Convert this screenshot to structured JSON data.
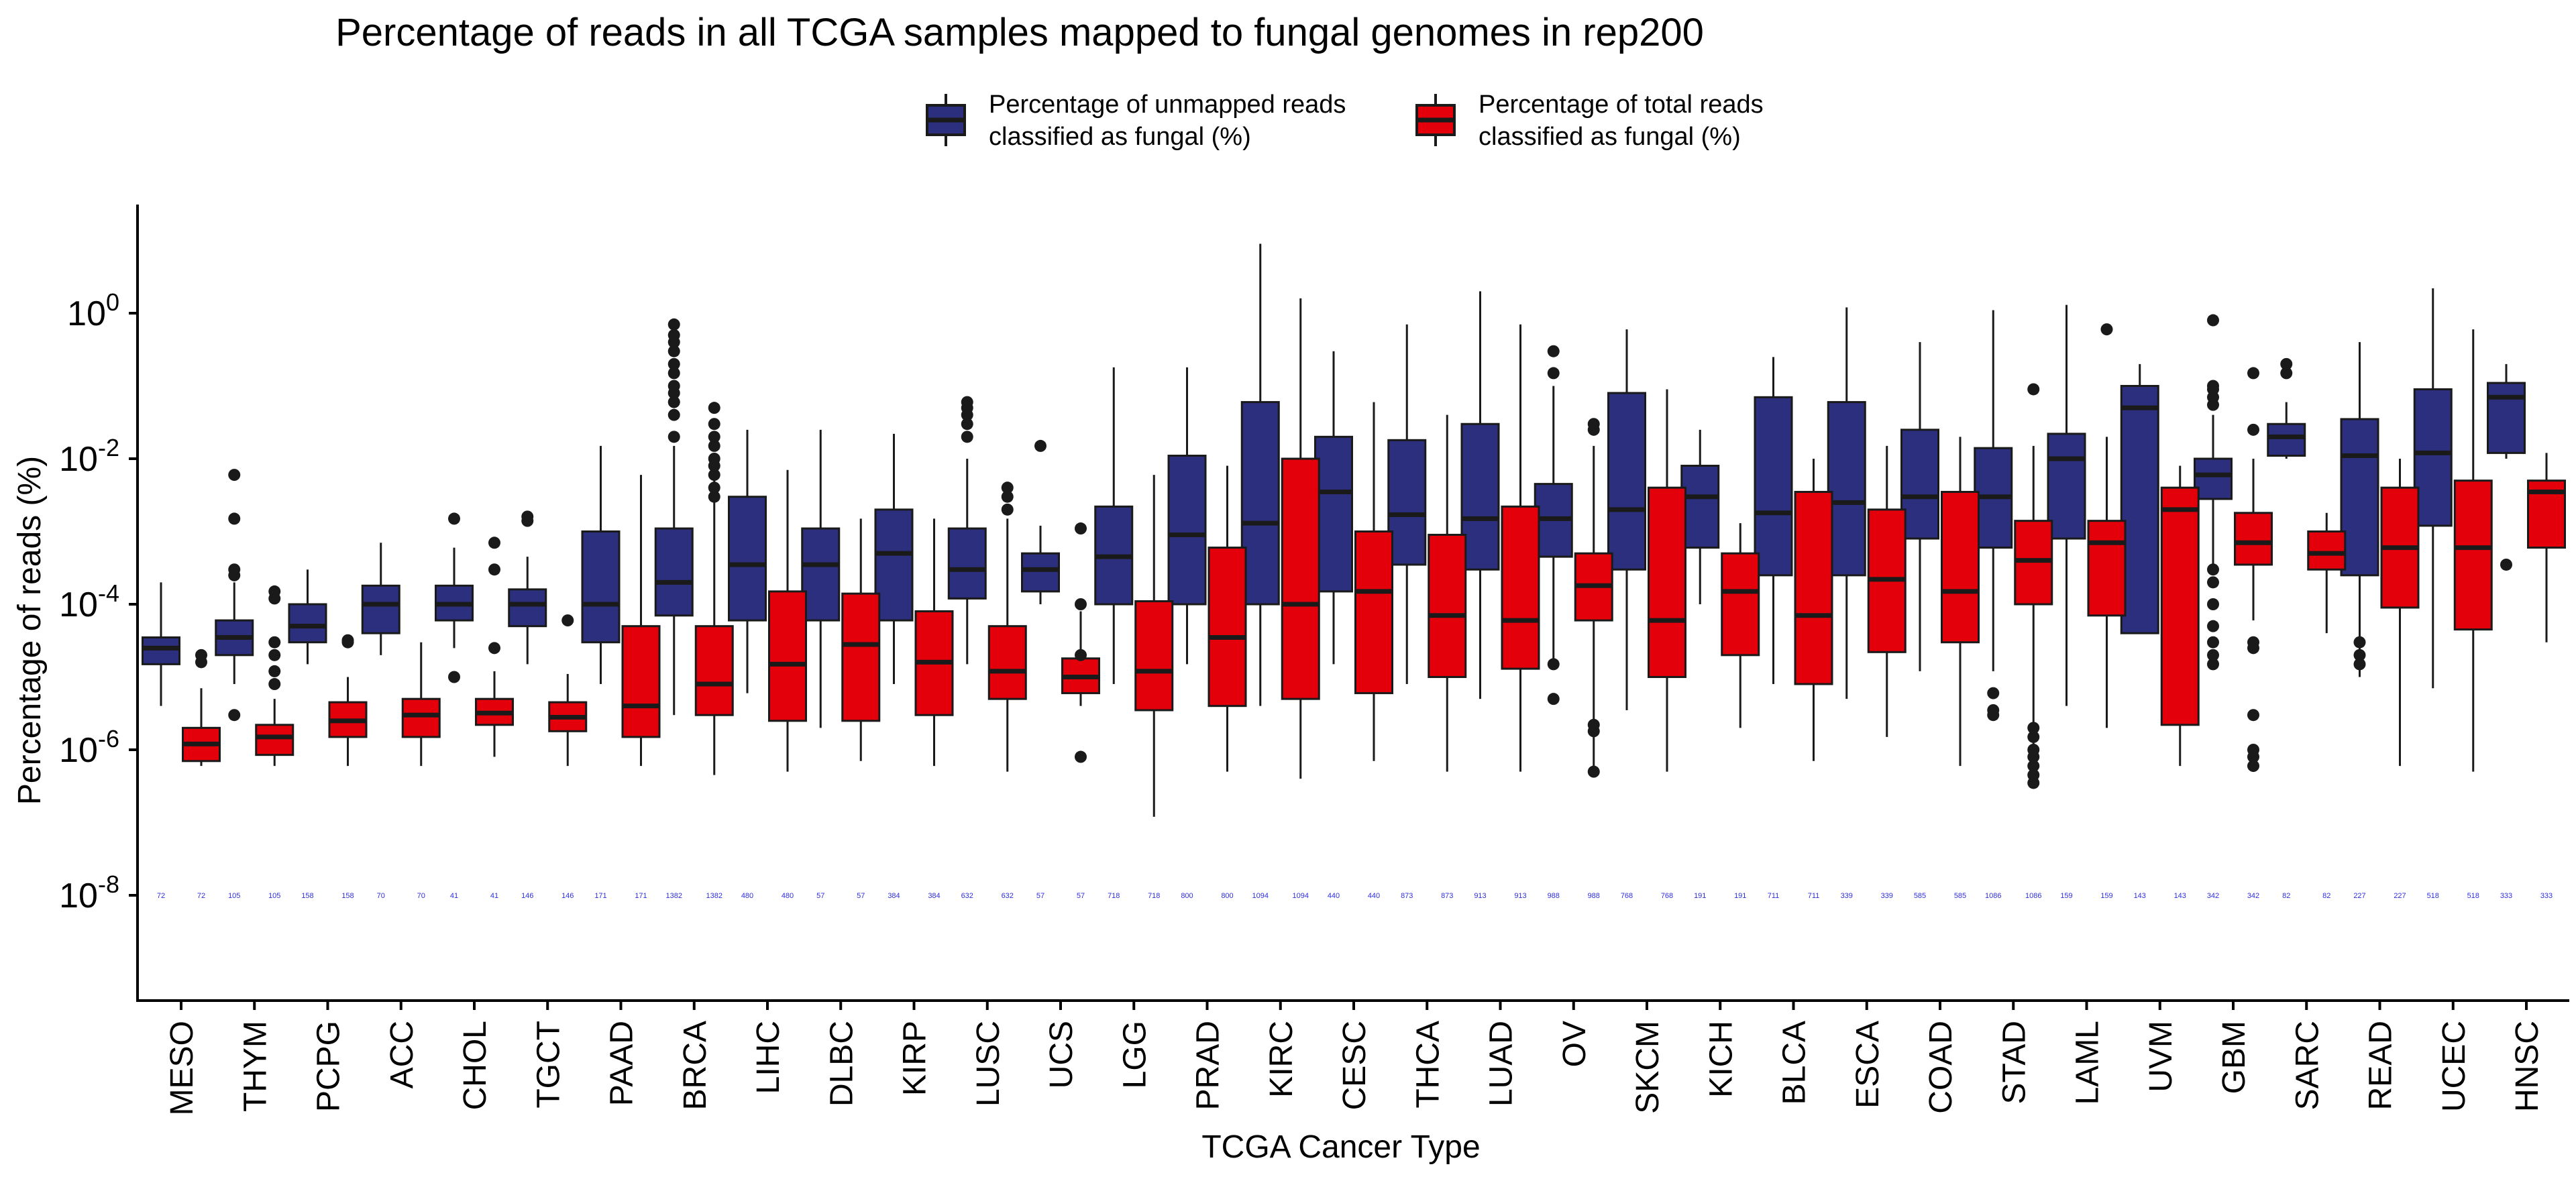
{
  "chart_data": {
    "type": "box",
    "title": "Percentage of reads in all TCGA samples mapped to fungal genomes in rep200",
    "xlabel": "TCGA Cancer Type",
    "ylabel": "Percentage of reads (%)",
    "y_scale": "log10",
    "ylim": [
      1e-10,
      200
    ],
    "yticks": [
      {
        "exp": "0",
        "value": 1
      },
      {
        "exp": "-2",
        "value": 0.01
      },
      {
        "exp": "-4",
        "value": 0.0001
      },
      {
        "exp": "-6",
        "value": 1e-06
      },
      {
        "exp": "-8",
        "value": 1e-08
      }
    ],
    "ytick_base": "10",
    "count_label_y": 1e-08,
    "legend": {
      "position": "top",
      "entries": [
        {
          "key": "unmapped",
          "line1": "Percentage of unmapped reads",
          "line2": "classified as fungal (%)"
        },
        {
          "key": "total",
          "line1": "Percentage of total reads",
          "line2": "classified as fungal (%)"
        }
      ]
    },
    "colors": {
      "unmapped": "#2b2f7d",
      "total": "#e3000b",
      "outline": "#1a1a1a",
      "count_text": "#2e2ee0"
    },
    "categories": [
      "MESO",
      "THYM",
      "PCPG",
      "ACC",
      "CHOL",
      "TGCT",
      "PAAD",
      "BRCA",
      "LIHC",
      "DLBC",
      "KIRP",
      "LUSC",
      "UCS",
      "LGG",
      "PRAD",
      "KIRC",
      "CESC",
      "THCA",
      "LUAD",
      "OV",
      "SKCM",
      "KICH",
      "BLCA",
      "ESCA",
      "COAD",
      "STAD",
      "LAML",
      "UVM",
      "GBM",
      "SARC",
      "READ",
      "UCEC",
      "HNSC"
    ],
    "series": [
      {
        "key": "unmapped",
        "name": "Percentage of unmapped reads classified as fungal (%)",
        "boxes": [
          {
            "n": "72",
            "lo": 4e-06,
            "q1": 1.5e-05,
            "med": 2.5e-05,
            "q3": 3.5e-05,
            "hi": 0.0002,
            "out": []
          },
          {
            "n": "105",
            "lo": 8e-06,
            "q1": 2e-05,
            "med": 3.5e-05,
            "q3": 6e-05,
            "hi": 0.0002,
            "out": [
              3e-06,
              0.00025,
              0.0003,
              0.0015,
              0.006
            ]
          },
          {
            "n": "158",
            "lo": 1.5e-05,
            "q1": 3e-05,
            "med": 5e-05,
            "q3": 0.0001,
            "hi": 0.0003,
            "out": []
          },
          {
            "n": "70",
            "lo": 2e-05,
            "q1": 4e-05,
            "med": 0.0001,
            "q3": 0.00018,
            "hi": 0.0007,
            "out": []
          },
          {
            "n": "41",
            "lo": 2.5e-05,
            "q1": 6e-05,
            "med": 0.0001,
            "q3": 0.00018,
            "hi": 0.0006,
            "out": [
              1e-05,
              0.0015
            ]
          },
          {
            "n": "146",
            "lo": 1.5e-05,
            "q1": 5e-05,
            "med": 0.0001,
            "q3": 0.00016,
            "hi": 0.00045,
            "out": [
              0.0014,
              0.0016
            ]
          },
          {
            "n": "171",
            "lo": 8e-06,
            "q1": 3e-05,
            "med": 0.0001,
            "q3": 0.001,
            "hi": 0.015,
            "out": []
          },
          {
            "n": "1382",
            "lo": 3e-06,
            "q1": 7e-05,
            "med": 0.0002,
            "q3": 0.0011,
            "hi": 0.015,
            "out": [
              0.02,
              0.04,
              0.06,
              0.08,
              0.1,
              0.15,
              0.2,
              0.3,
              0.4,
              0.5,
              0.7
            ]
          },
          {
            "n": "480",
            "lo": 6e-06,
            "q1": 6e-05,
            "med": 0.00035,
            "q3": 0.003,
            "hi": 0.025,
            "out": []
          },
          {
            "n": "57",
            "lo": 2e-06,
            "q1": 6e-05,
            "med": 0.00035,
            "q3": 0.0011,
            "hi": 0.025,
            "out": []
          },
          {
            "n": "384",
            "lo": 8e-06,
            "q1": 6e-05,
            "med": 0.0005,
            "q3": 0.002,
            "hi": 0.022,
            "out": []
          },
          {
            "n": "632",
            "lo": 1.5e-05,
            "q1": 0.00012,
            "med": 0.0003,
            "q3": 0.0011,
            "hi": 0.01,
            "out": [
              0.02,
              0.03,
              0.04,
              0.05,
              0.06
            ]
          },
          {
            "n": "57",
            "lo": 0.0001,
            "q1": 0.00015,
            "med": 0.0003,
            "q3": 0.0005,
            "hi": 0.0012,
            "out": [
              0.015
            ]
          },
          {
            "n": "718",
            "lo": 8e-06,
            "q1": 0.0001,
            "med": 0.00045,
            "q3": 0.0022,
            "hi": 0.18,
            "out": []
          },
          {
            "n": "800",
            "lo": 1.5e-05,
            "q1": 0.0001,
            "med": 0.0009,
            "q3": 0.011,
            "hi": 0.18,
            "out": []
          },
          {
            "n": "1094",
            "lo": 4e-06,
            "q1": 0.0001,
            "med": 0.0013,
            "q3": 0.06,
            "hi": 9,
            "out": []
          },
          {
            "n": "440",
            "lo": 1.5e-05,
            "q1": 0.00015,
            "med": 0.0035,
            "q3": 0.02,
            "hi": 0.3,
            "out": []
          },
          {
            "n": "873",
            "lo": 8e-06,
            "q1": 0.00035,
            "med": 0.0017,
            "q3": 0.018,
            "hi": 0.7,
            "out": []
          },
          {
            "n": "913",
            "lo": 5e-06,
            "q1": 0.0003,
            "med": 0.0015,
            "q3": 0.03,
            "hi": 2,
            "out": []
          },
          {
            "n": "988",
            "lo": 1.5e-05,
            "q1": 0.00045,
            "med": 0.0015,
            "q3": 0.0045,
            "hi": 0.1,
            "out": [
              5e-06,
              1.5e-05,
              0.15,
              0.3
            ]
          },
          {
            "n": "768",
            "lo": 3.5e-06,
            "q1": 0.0003,
            "med": 0.002,
            "q3": 0.08,
            "hi": 0.6,
            "out": []
          },
          {
            "n": "191",
            "lo": 0.0001,
            "q1": 0.0006,
            "med": 0.003,
            "q3": 0.008,
            "hi": 0.025,
            "out": []
          },
          {
            "n": "711",
            "lo": 8e-06,
            "q1": 0.00025,
            "med": 0.0018,
            "q3": 0.07,
            "hi": 0.25,
            "out": []
          },
          {
            "n": "339",
            "lo": 5e-06,
            "q1": 0.00025,
            "med": 0.0025,
            "q3": 0.06,
            "hi": 1.2,
            "out": []
          },
          {
            "n": "585",
            "lo": 1.2e-05,
            "q1": 0.0008,
            "med": 0.003,
            "q3": 0.025,
            "hi": 0.4,
            "out": []
          },
          {
            "n": "1086",
            "lo": 1.2e-05,
            "q1": 0.0006,
            "med": 0.003,
            "q3": 0.014,
            "hi": 1.1,
            "out": [
              3e-06,
              3.5e-06,
              6e-06
            ]
          },
          {
            "n": "159",
            "lo": 4e-06,
            "q1": 0.0008,
            "med": 0.01,
            "q3": 0.022,
            "hi": 1.3,
            "out": []
          },
          {
            "n": "143",
            "lo": 4e-05,
            "q1": 4e-05,
            "med": 0.05,
            "q3": 0.1,
            "hi": 0.2,
            "out": []
          },
          {
            "n": "342",
            "lo": 0.0003,
            "q1": 0.0028,
            "med": 0.006,
            "q3": 0.01,
            "hi": 0.04,
            "out": [
              1.5e-05,
              2e-05,
              3e-05,
              5e-05,
              0.0001,
              0.0002,
              0.0003,
              0.055,
              0.07,
              0.09,
              0.1,
              0.8
            ]
          },
          {
            "n": "82",
            "lo": 0.01,
            "q1": 0.011,
            "med": 0.02,
            "q3": 0.03,
            "hi": 0.06,
            "out": [
              0.15,
              0.2
            ]
          },
          {
            "n": "227",
            "lo": 1e-05,
            "q1": 0.00025,
            "med": 0.011,
            "q3": 0.035,
            "hi": 0.4,
            "out": [
              1.5e-05,
              2e-05,
              3e-05
            ]
          },
          {
            "n": "518",
            "lo": 7e-06,
            "q1": 0.0012,
            "med": 0.012,
            "q3": 0.09,
            "hi": 2.2,
            "out": []
          },
          {
            "n": "333",
            "lo": 0.01,
            "q1": 0.012,
            "med": 0.07,
            "q3": 0.11,
            "hi": 0.2,
            "out": [
              0.00035
            ]
          }
        ]
      },
      {
        "key": "total",
        "name": "Percentage of total reads classified as fungal (%)",
        "boxes": [
          {
            "n": "72",
            "lo": 6e-07,
            "q1": 7e-07,
            "med": 1.2e-06,
            "q3": 2e-06,
            "hi": 7e-06,
            "out": [
              1.6e-05,
              2e-05
            ]
          },
          {
            "n": "105",
            "lo": 6e-07,
            "q1": 8.5e-07,
            "med": 1.5e-06,
            "q3": 2.2e-06,
            "hi": 5e-06,
            "out": [
              8e-06,
              1.2e-05,
              2e-05,
              3e-05,
              0.00012,
              0.00015
            ]
          },
          {
            "n": "158",
            "lo": 6e-07,
            "q1": 1.5e-06,
            "med": 2.5e-06,
            "q3": 4.5e-06,
            "hi": 1e-05,
            "out": [
              3e-05,
              3.2e-05
            ]
          },
          {
            "n": "70",
            "lo": 6e-07,
            "q1": 1.5e-06,
            "med": 3e-06,
            "q3": 5e-06,
            "hi": 3e-05,
            "out": []
          },
          {
            "n": "41",
            "lo": 8e-07,
            "q1": 2.2e-06,
            "med": 3.2e-06,
            "q3": 5e-06,
            "hi": 1.2e-05,
            "out": [
              2.5e-05,
              0.0003,
              0.0007
            ]
          },
          {
            "n": "146",
            "lo": 6e-07,
            "q1": 1.8e-06,
            "med": 2.8e-06,
            "q3": 4.5e-06,
            "hi": 1.1e-05,
            "out": [
              6e-05
            ]
          },
          {
            "n": "171",
            "lo": 6e-07,
            "q1": 1.5e-06,
            "med": 4e-06,
            "q3": 5e-05,
            "hi": 0.006,
            "out": []
          },
          {
            "n": "1382",
            "lo": 4.5e-07,
            "q1": 3e-06,
            "med": 8e-06,
            "q3": 5e-05,
            "hi": 0.005,
            "out": [
              0.003,
              0.004,
              0.006,
              0.008,
              0.01,
              0.015,
              0.02,
              0.03,
              0.05
            ]
          },
          {
            "n": "480",
            "lo": 5e-07,
            "q1": 2.5e-06,
            "med": 1.5e-05,
            "q3": 0.00015,
            "hi": 0.007,
            "out": []
          },
          {
            "n": "57",
            "lo": 7e-07,
            "q1": 2.5e-06,
            "med": 2.8e-05,
            "q3": 0.00014,
            "hi": 0.0015,
            "out": []
          },
          {
            "n": "384",
            "lo": 6e-07,
            "q1": 3e-06,
            "med": 1.6e-05,
            "q3": 8e-05,
            "hi": 0.0015,
            "out": []
          },
          {
            "n": "632",
            "lo": 5e-07,
            "q1": 5e-06,
            "med": 1.2e-05,
            "q3": 5e-05,
            "hi": 0.0015,
            "out": [
              0.002,
              0.003,
              0.004
            ]
          },
          {
            "n": "57",
            "lo": 4e-06,
            "q1": 6e-06,
            "med": 1e-05,
            "q3": 1.8e-05,
            "hi": 8e-05,
            "out": [
              8e-07,
              2e-05,
              0.0001,
              0.0011
            ]
          },
          {
            "n": "718",
            "lo": 1.2e-07,
            "q1": 3.5e-06,
            "med": 1.2e-05,
            "q3": 0.00011,
            "hi": 0.006,
            "out": []
          },
          {
            "n": "800",
            "lo": 5e-07,
            "q1": 4e-06,
            "med": 3.5e-05,
            "q3": 0.0006,
            "hi": 0.008,
            "out": []
          },
          {
            "n": "1094",
            "lo": 4e-07,
            "q1": 5e-06,
            "med": 0.0001,
            "q3": 0.01,
            "hi": 1.6,
            "out": []
          },
          {
            "n": "440",
            "lo": 7e-07,
            "q1": 6e-06,
            "med": 0.00015,
            "q3": 0.001,
            "hi": 0.06,
            "out": []
          },
          {
            "n": "873",
            "lo": 5e-07,
            "q1": 1e-05,
            "med": 7e-05,
            "q3": 0.0009,
            "hi": 0.04,
            "out": []
          },
          {
            "n": "913",
            "lo": 5e-07,
            "q1": 1.3e-05,
            "med": 6e-05,
            "q3": 0.0022,
            "hi": 0.7,
            "out": []
          },
          {
            "n": "988",
            "lo": 6e-07,
            "q1": 6e-05,
            "med": 0.00018,
            "q3": 0.0005,
            "hi": 0.015,
            "out": [
              5e-07,
              1.8e-06,
              2.2e-06,
              0.025,
              0.03
            ]
          },
          {
            "n": "768",
            "lo": 5e-07,
            "q1": 1e-05,
            "med": 6e-05,
            "q3": 0.004,
            "hi": 0.09,
            "out": []
          },
          {
            "n": "191",
            "lo": 2e-06,
            "q1": 2e-05,
            "med": 0.00015,
            "q3": 0.0005,
            "hi": 0.0013,
            "out": []
          },
          {
            "n": "711",
            "lo": 7e-07,
            "q1": 8e-06,
            "med": 7e-05,
            "q3": 0.0035,
            "hi": 0.01,
            "out": []
          },
          {
            "n": "339",
            "lo": 1.5e-06,
            "q1": 2.2e-05,
            "med": 0.00022,
            "q3": 0.002,
            "hi": 0.015,
            "out": []
          },
          {
            "n": "585",
            "lo": 6e-07,
            "q1": 3e-05,
            "med": 0.00015,
            "q3": 0.0035,
            "hi": 0.02,
            "out": []
          },
          {
            "n": "1086",
            "lo": 1e-06,
            "q1": 0.0001,
            "med": 0.0004,
            "q3": 0.0014,
            "hi": 0.015,
            "out": [
              3.5e-07,
              4.5e-07,
              6e-07,
              8e-07,
              1e-06,
              1.5e-06,
              2e-06,
              0.09
            ]
          },
          {
            "n": "159",
            "lo": 2e-06,
            "q1": 7e-05,
            "med": 0.0007,
            "q3": 0.0014,
            "hi": 0.02,
            "out": [
              0.6
            ]
          },
          {
            "n": "143",
            "lo": 6e-07,
            "q1": 2.2e-06,
            "med": 0.002,
            "q3": 0.004,
            "hi": 0.008,
            "out": []
          },
          {
            "n": "342",
            "lo": 6e-05,
            "q1": 0.00035,
            "med": 0.0007,
            "q3": 0.0018,
            "hi": 0.01,
            "out": [
              6e-07,
              8e-07,
              1e-06,
              3e-06,
              2.5e-05,
              3e-05,
              0.025,
              0.15
            ]
          },
          {
            "n": "82",
            "lo": 4e-05,
            "q1": 0.0003,
            "med": 0.0005,
            "q3": 0.001,
            "hi": 0.0018,
            "out": []
          },
          {
            "n": "227",
            "lo": 6e-07,
            "q1": 9e-05,
            "med": 0.0006,
            "q3": 0.004,
            "hi": 0.01,
            "out": []
          },
          {
            "n": "518",
            "lo": 5e-07,
            "q1": 4.5e-05,
            "med": 0.0006,
            "q3": 0.005,
            "hi": 0.6,
            "out": []
          },
          {
            "n": "333",
            "lo": 3e-05,
            "q1": 0.0006,
            "med": 0.0035,
            "q3": 0.005,
            "hi": 0.012,
            "out": []
          }
        ]
      }
    ]
  }
}
